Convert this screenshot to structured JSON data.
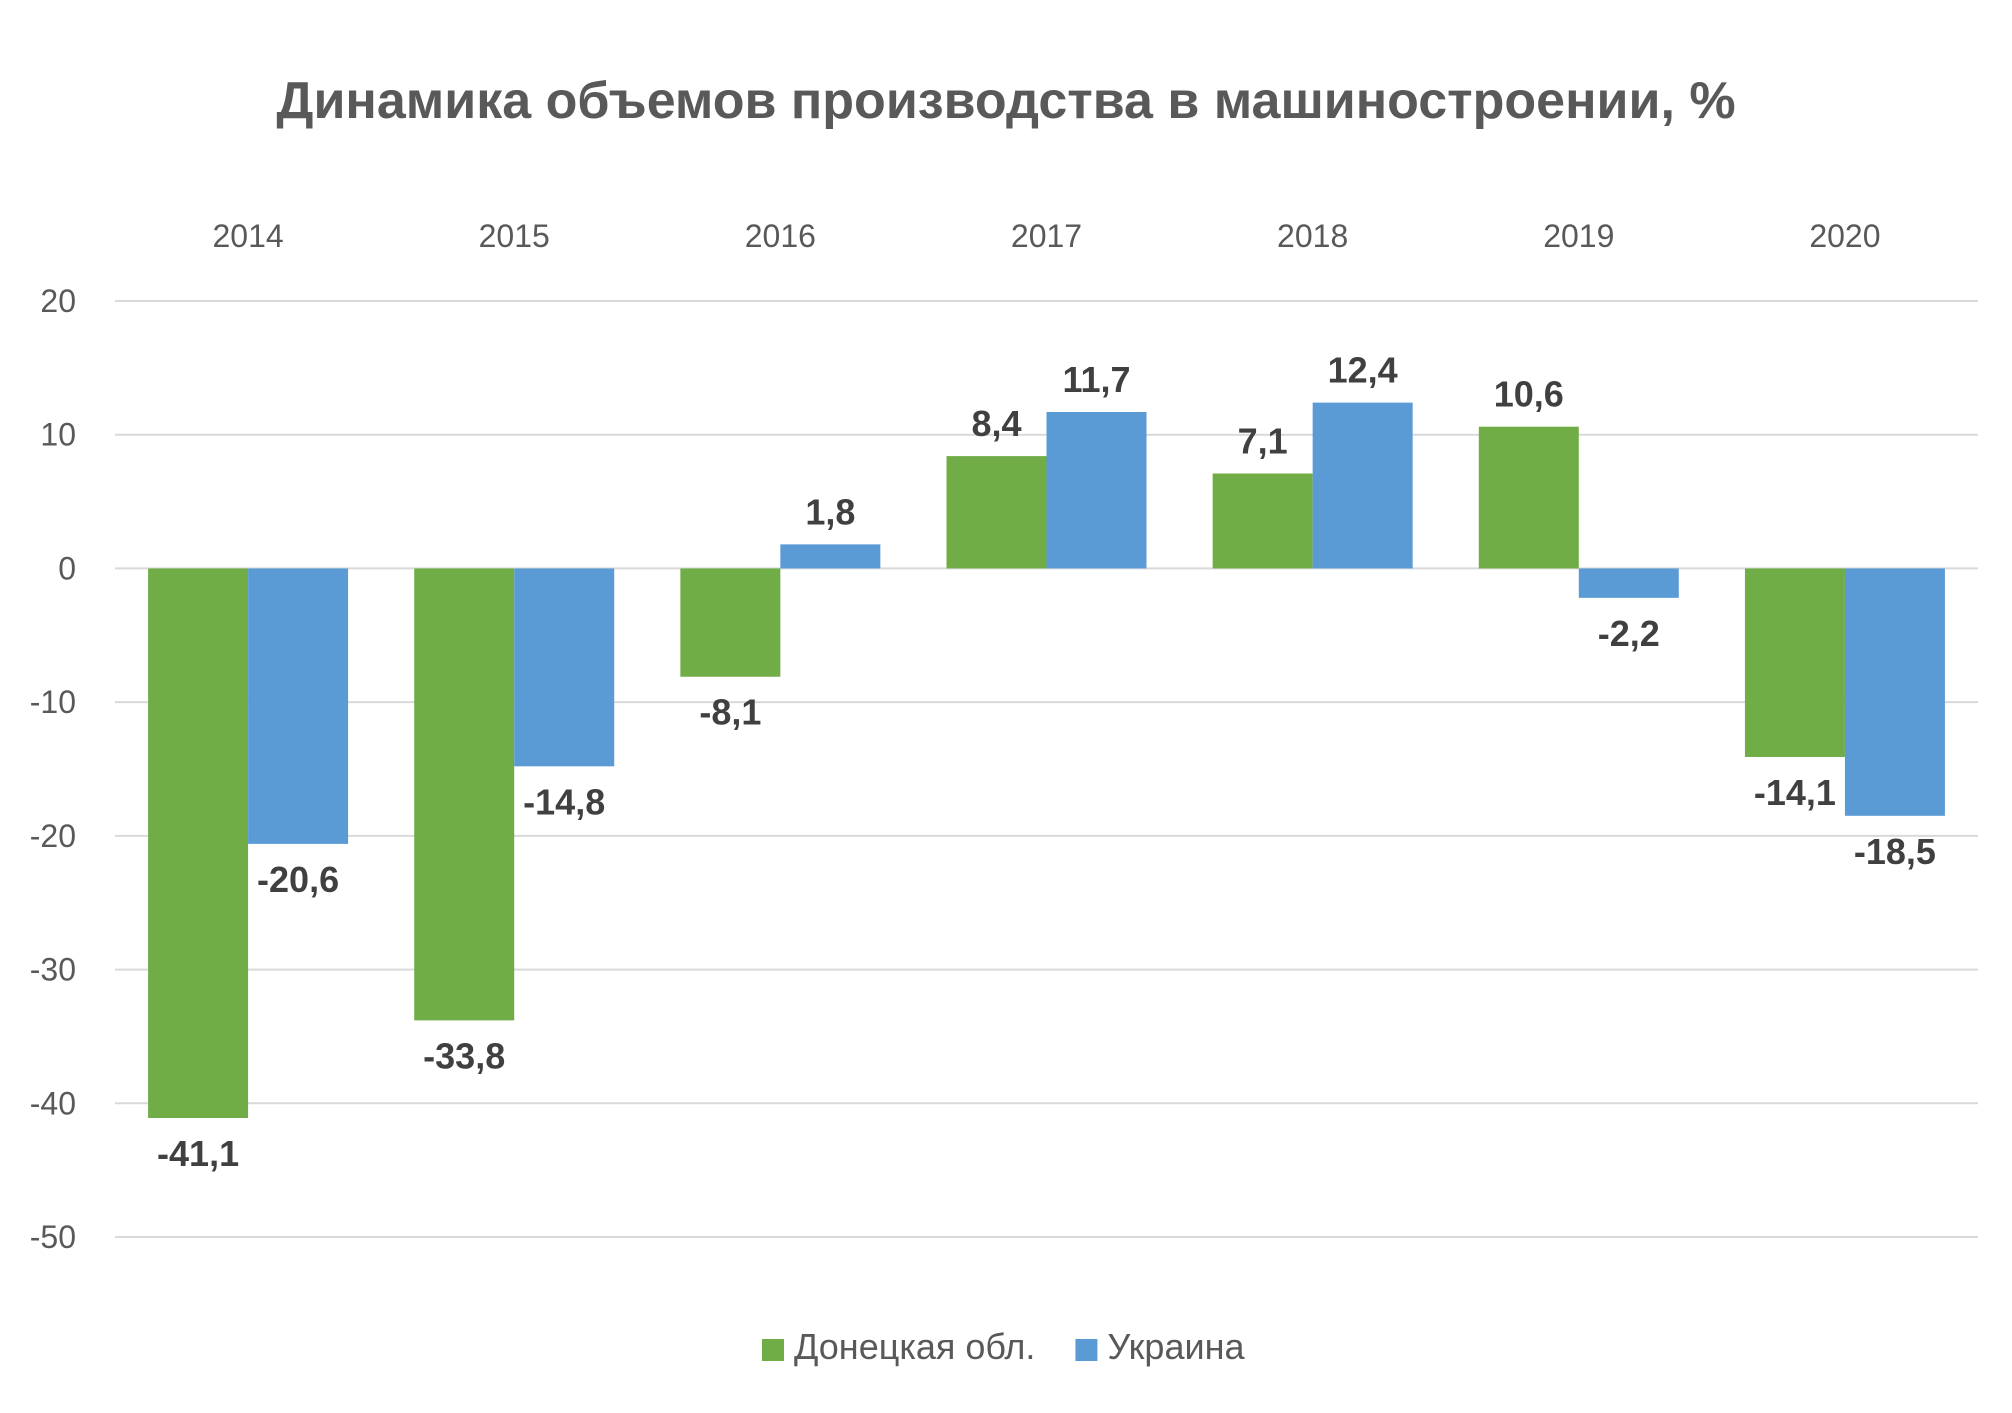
{
  "chart_data": {
    "type": "bar",
    "title": "Динамика объемов производства в машиностроении, %",
    "categories": [
      "2014",
      "2015",
      "2016",
      "2017",
      "2018",
      "2019",
      "2020"
    ],
    "series": [
      {
        "name": "Донецкая обл.",
        "color": "#70AD47",
        "values": [
          -41.1,
          -33.8,
          -8.1,
          8.4,
          7.1,
          10.6,
          -14.1
        ],
        "labels": [
          "-41,1",
          "-33,8",
          "-8,1",
          "8,4",
          "7,1",
          "10,6",
          "-14,1"
        ]
      },
      {
        "name": "Украина",
        "color": "#5B9BD5",
        "values": [
          -20.6,
          -14.8,
          1.8,
          11.7,
          12.4,
          -2.2,
          -18.5
        ],
        "labels": [
          "-20,6",
          "-14,8",
          "1,8",
          "11,7",
          "12,4",
          "-2,2",
          "-18,5"
        ]
      }
    ],
    "xlabel": "",
    "ylabel": "",
    "ylim": [
      -50,
      20
    ],
    "yticks": [
      20,
      10,
      0,
      -10,
      -20,
      -30,
      -40,
      -50
    ],
    "category_axis_position": "top",
    "grid": true,
    "legend_position": "bottom",
    "gridline_color": "#D9D9D9"
  }
}
